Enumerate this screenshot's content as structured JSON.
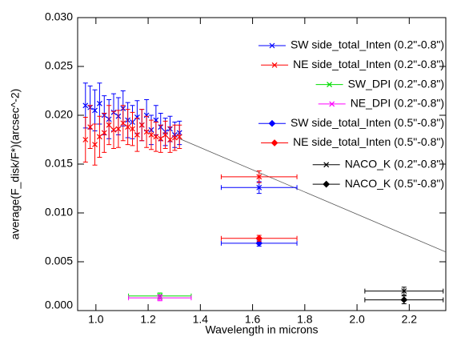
{
  "chart_data": {
    "type": "scatter",
    "xlabel": "Wavelength in microns",
    "ylabel": "average(F_disk/F*)(arcsec^-2)",
    "xlim": [
      0.93,
      2.34
    ],
    "ylim": [
      0,
      0.03
    ],
    "xticks": [
      {
        "value": 1,
        "label": "1.0"
      },
      1.2,
      1.4,
      1.6,
      1.8,
      {
        "value": 2,
        "label": "2.0"
      },
      2.2
    ],
    "yticks": [
      {
        "value": 0,
        "label": "0.000"
      },
      0.005,
      {
        "value": 0.01,
        "label": "0.010"
      },
      0.015,
      {
        "value": 0.02,
        "label": "0.020"
      },
      0.025,
      {
        "value": 0.03,
        "label": "0.030"
      }
    ],
    "legend": "upper right",
    "series": [
      {
        "name": "SW side_total_Inten (0.2\"-0.8\")",
        "color": "#0000ff",
        "marker": "x",
        "x": [
          0.96,
          0.978,
          0.996,
          1.014,
          1.032,
          1.05,
          1.068,
          1.086,
          1.104,
          1.122,
          1.14,
          1.158,
          1.176,
          1.194,
          1.212,
          1.23,
          1.248,
          1.266,
          1.284,
          1.302,
          1.32,
          1.625
        ],
        "values": [
          0.021,
          0.0208,
          0.0205,
          0.0212,
          0.02,
          0.0196,
          0.0203,
          0.0199,
          0.0207,
          0.0195,
          0.0193,
          0.0198,
          0.019,
          0.02,
          0.0185,
          0.0195,
          0.0188,
          0.0183,
          0.0186,
          0.018,
          0.0182,
          0.0126
        ],
        "yerr": [
          0.0023,
          0.0022,
          0.0021,
          0.0021,
          0.002,
          0.002,
          0.0019,
          0.0019,
          0.0018,
          0.0018,
          0.0017,
          0.0017,
          0.0016,
          0.0016,
          0.0015,
          0.0015,
          0.0014,
          0.0014,
          0.0013,
          0.0013,
          0.0012,
          0.0006
        ],
        "xerr": [
          null,
          null,
          null,
          null,
          null,
          null,
          null,
          null,
          null,
          null,
          null,
          null,
          null,
          null,
          null,
          null,
          null,
          null,
          null,
          null,
          null,
          0.145
        ]
      },
      {
        "name": "NE side_total_Inten (0.2\"-0.8\")",
        "color": "#ff0000",
        "marker": "x",
        "x": [
          0.96,
          0.978,
          0.996,
          1.014,
          1.032,
          1.05,
          1.068,
          1.086,
          1.104,
          1.122,
          1.14,
          1.158,
          1.176,
          1.194,
          1.212,
          1.23,
          1.248,
          1.266,
          1.284,
          1.302,
          1.32,
          1.625
        ],
        "values": [
          0.0175,
          0.0188,
          0.017,
          0.0178,
          0.0182,
          0.019,
          0.0185,
          0.0186,
          0.0192,
          0.0188,
          0.0186,
          0.018,
          0.019,
          0.0183,
          0.018,
          0.0178,
          0.0176,
          0.018,
          0.0175,
          0.0177,
          0.0178,
          0.0137
        ],
        "yerr": [
          0.0023,
          0.0022,
          0.0021,
          0.0021,
          0.002,
          0.002,
          0.0019,
          0.0019,
          0.0018,
          0.0018,
          0.0017,
          0.0017,
          0.0016,
          0.0016,
          0.0015,
          0.0015,
          0.0014,
          0.0014,
          0.0013,
          0.0013,
          0.0012,
          0.0006
        ],
        "xerr": [
          null,
          null,
          null,
          null,
          null,
          null,
          null,
          null,
          null,
          null,
          null,
          null,
          null,
          null,
          null,
          null,
          null,
          null,
          null,
          null,
          null,
          0.145
        ]
      },
      {
        "name": "SW_DPI (0.2\"-0.8\")",
        "color": "#00dd00",
        "marker": "x",
        "x": [
          1.245
        ],
        "values": [
          0.0015
        ],
        "yerr": [
          0.0003
        ],
        "xerr": [
          0.12
        ]
      },
      {
        "name": "NE_DPI (0.2\"-0.8\")",
        "color": "#ff00ff",
        "marker": "x",
        "x": [
          1.245
        ],
        "values": [
          0.0013
        ],
        "yerr": [
          0.0003
        ],
        "xerr": [
          0.12
        ]
      },
      {
        "name": "SW side_total_Inten (0.5\"-0.8\")",
        "color": "#0000ff",
        "marker": "diamond",
        "x": [
          1.625
        ],
        "values": [
          0.0069
        ],
        "yerr": [
          0.0003
        ],
        "xerr": [
          0.145
        ]
      },
      {
        "name": "NE side_total_Inten (0.5\"-0.8\")",
        "color": "#ff0000",
        "marker": "diamond",
        "x": [
          1.625
        ],
        "values": [
          0.0074
        ],
        "yerr": [
          0.0003
        ],
        "xerr": [
          0.145
        ]
      },
      {
        "name": "NACO_K (0.2\"-0.8\")",
        "color": "#000000",
        "marker": "x",
        "x": [
          2.18
        ],
        "values": [
          0.002
        ],
        "yerr": [
          0.0004
        ],
        "xerr": [
          0.15
        ]
      },
      {
        "name": "NACO_K (0.5\"-0.8\")",
        "color": "#000000",
        "marker": "diamond",
        "x": [
          2.18
        ],
        "values": [
          0.0011
        ],
        "yerr": [
          0.0004
        ],
        "xerr": [
          0.15
        ]
      }
    ],
    "lines": [
      {
        "color": "#555555",
        "x": [
          1.32,
          2.34
        ],
        "values": [
          0.0176,
          0.006
        ]
      }
    ]
  }
}
